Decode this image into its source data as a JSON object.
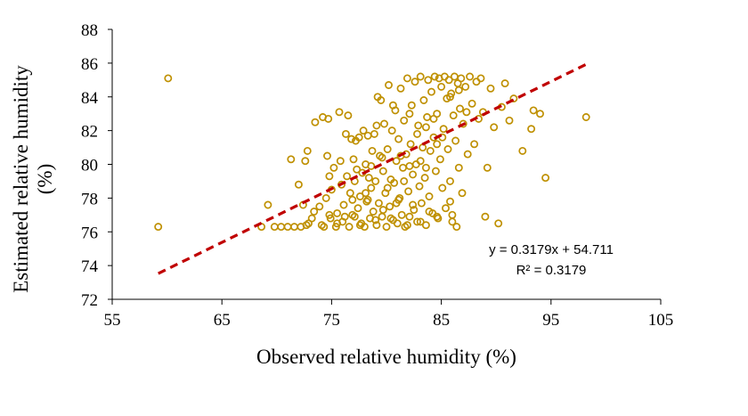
{
  "chart_data": {
    "type": "scatter",
    "xlabel": "Observed relative humidity (%)",
    "ylabel_lines": [
      "Estimated relative humidity",
      "(%)"
    ],
    "xlim": [
      55,
      105
    ],
    "ylim": [
      72,
      88
    ],
    "xticks": [
      "55",
      "65",
      "75",
      "85",
      "95",
      "105"
    ],
    "yticks": [
      "72",
      "74",
      "76",
      "78",
      "80",
      "82",
      "84",
      "86",
      "88"
    ],
    "grid": false,
    "legend": "none",
    "marker_color": "#BF9000",
    "trendline": {
      "equation": "y = 0.3179x + 54.711",
      "r_squared": "R² = 0.3179",
      "slope": 0.3179,
      "intercept": 54.711,
      "x_range": [
        59.2,
        98.2
      ],
      "color": "#C00000",
      "style": "dashed"
    },
    "series": [
      {
        "points": [
          [
            59.2,
            76.3
          ],
          [
            60.1,
            85.1
          ],
          [
            68.6,
            76.3
          ],
          [
            69.2,
            77.6
          ],
          [
            69.8,
            76.3
          ],
          [
            70.4,
            76.3
          ],
          [
            71.0,
            76.3
          ],
          [
            71.6,
            76.3
          ],
          [
            71.3,
            80.3
          ],
          [
            72.0,
            78.8
          ],
          [
            72.4,
            77.6
          ],
          [
            72.6,
            80.2
          ],
          [
            72.8,
            80.8
          ],
          [
            72.2,
            76.3
          ],
          [
            72.9,
            76.5
          ],
          [
            73.2,
            76.8
          ],
          [
            73.5,
            82.5
          ],
          [
            73.9,
            77.5
          ],
          [
            74.2,
            82.8
          ],
          [
            74.3,
            76.3
          ],
          [
            74.5,
            78.0
          ],
          [
            74.6,
            80.5
          ],
          [
            74.7,
            82.7
          ],
          [
            74.8,
            79.3
          ],
          [
            74.9,
            76.8
          ],
          [
            75.0,
            78.5
          ],
          [
            75.2,
            79.8
          ],
          [
            75.4,
            76.3
          ],
          [
            75.5,
            77.1
          ],
          [
            75.7,
            83.1
          ],
          [
            75.8,
            80.2
          ],
          [
            75.9,
            78.8
          ],
          [
            76.0,
            76.6
          ],
          [
            76.1,
            77.6
          ],
          [
            76.3,
            81.8
          ],
          [
            76.4,
            79.3
          ],
          [
            76.5,
            82.9
          ],
          [
            76.6,
            76.3
          ],
          [
            76.7,
            78.3
          ],
          [
            76.8,
            81.5
          ],
          [
            76.9,
            77.0
          ],
          [
            77.0,
            80.3
          ],
          [
            77.1,
            76.9
          ],
          [
            77.2,
            81.4
          ],
          [
            77.3,
            79.7
          ],
          [
            77.4,
            77.4
          ],
          [
            77.5,
            81.6
          ],
          [
            77.6,
            78.1
          ],
          [
            77.7,
            76.5
          ],
          [
            77.8,
            79.5
          ],
          [
            77.9,
            82.0
          ],
          [
            78.0,
            76.3
          ],
          [
            78.1,
            80.0
          ],
          [
            78.2,
            77.8
          ],
          [
            78.3,
            81.7
          ],
          [
            78.4,
            79.2
          ],
          [
            78.5,
            76.8
          ],
          [
            78.6,
            78.6
          ],
          [
            78.7,
            80.8
          ],
          [
            78.8,
            77.2
          ],
          [
            78.9,
            81.8
          ],
          [
            79.0,
            79.0
          ],
          [
            79.1,
            76.4
          ],
          [
            79.2,
            84.0
          ],
          [
            79.3,
            77.7
          ],
          [
            79.4,
            80.5
          ],
          [
            79.5,
            83.8
          ],
          [
            79.6,
            76.9
          ],
          [
            79.7,
            79.6
          ],
          [
            79.8,
            82.4
          ],
          [
            79.9,
            78.3
          ],
          [
            80.0,
            76.3
          ],
          [
            80.1,
            80.9
          ],
          [
            80.2,
            84.7
          ],
          [
            80.3,
            77.5
          ],
          [
            80.4,
            79.1
          ],
          [
            80.5,
            82.0
          ],
          [
            80.6,
            76.7
          ],
          [
            80.7,
            78.9
          ],
          [
            80.8,
            83.2
          ],
          [
            80.9,
            80.2
          ],
          [
            81.0,
            76.5
          ],
          [
            81.1,
            81.5
          ],
          [
            81.2,
            78.0
          ],
          [
            81.3,
            84.5
          ],
          [
            81.4,
            77.0
          ],
          [
            81.5,
            79.8
          ],
          [
            81.6,
            82.6
          ],
          [
            81.7,
            76.3
          ],
          [
            81.8,
            80.6
          ],
          [
            81.9,
            85.1
          ],
          [
            82.0,
            78.4
          ],
          [
            82.1,
            76.9
          ],
          [
            82.2,
            81.2
          ],
          [
            82.3,
            83.5
          ],
          [
            82.4,
            79.4
          ],
          [
            82.5,
            77.3
          ],
          [
            82.6,
            84.9
          ],
          [
            82.7,
            80.0
          ],
          [
            82.8,
            76.6
          ],
          [
            82.9,
            82.3
          ],
          [
            83.0,
            78.7
          ],
          [
            83.1,
            85.2
          ],
          [
            83.2,
            77.7
          ],
          [
            83.3,
            81.0
          ],
          [
            83.4,
            83.8
          ],
          [
            83.5,
            79.2
          ],
          [
            83.6,
            76.4
          ],
          [
            83.7,
            82.8
          ],
          [
            83.8,
            85.0
          ],
          [
            83.9,
            78.1
          ],
          [
            84.0,
            80.8
          ],
          [
            84.1,
            84.3
          ],
          [
            84.2,
            77.1
          ],
          [
            84.3,
            81.6
          ],
          [
            84.4,
            85.2
          ],
          [
            84.5,
            79.6
          ],
          [
            84.6,
            83.0
          ],
          [
            84.7,
            76.8
          ],
          [
            84.8,
            85.1
          ],
          [
            84.9,
            80.3
          ],
          [
            85.0,
            84.6
          ],
          [
            85.1,
            78.6
          ],
          [
            85.2,
            82.1
          ],
          [
            85.3,
            85.2
          ],
          [
            85.4,
            77.4
          ],
          [
            85.5,
            83.9
          ],
          [
            85.6,
            80.9
          ],
          [
            85.7,
            85.0
          ],
          [
            85.8,
            79.0
          ],
          [
            85.9,
            84.2
          ],
          [
            86.0,
            77.0
          ],
          [
            86.1,
            82.9
          ],
          [
            86.2,
            85.2
          ],
          [
            86.3,
            81.4
          ],
          [
            86.4,
            76.3
          ],
          [
            86.5,
            84.8
          ],
          [
            86.6,
            79.8
          ],
          [
            86.7,
            83.3
          ],
          [
            86.8,
            85.1
          ],
          [
            86.9,
            78.3
          ],
          [
            87.0,
            82.4
          ],
          [
            87.2,
            84.6
          ],
          [
            87.4,
            80.6
          ],
          [
            87.6,
            85.2
          ],
          [
            87.8,
            83.6
          ],
          [
            88.0,
            81.2
          ],
          [
            88.2,
            84.9
          ],
          [
            88.4,
            82.7
          ],
          [
            88.6,
            85.1
          ],
          [
            88.8,
            83.1
          ],
          [
            89.0,
            76.9
          ],
          [
            89.2,
            79.8
          ],
          [
            89.5,
            84.5
          ],
          [
            89.8,
            82.2
          ],
          [
            90.2,
            76.5
          ],
          [
            90.5,
            83.4
          ],
          [
            90.8,
            84.8
          ],
          [
            91.2,
            82.6
          ],
          [
            91.6,
            83.9
          ],
          [
            92.4,
            80.8
          ],
          [
            93.2,
            82.1
          ],
          [
            93.4,
            83.2
          ],
          [
            94.0,
            83.0
          ],
          [
            94.5,
            79.2
          ],
          [
            98.2,
            82.8
          ],
          [
            85.8,
            77.8
          ],
          [
            86.0,
            76.6
          ],
          [
            84.6,
            76.9
          ],
          [
            83.9,
            77.2
          ],
          [
            83.1,
            76.6
          ],
          [
            82.4,
            77.6
          ],
          [
            81.9,
            76.4
          ],
          [
            81.1,
            77.9
          ],
          [
            80.4,
            76.8
          ],
          [
            79.7,
            77.3
          ],
          [
            79.0,
            76.7
          ],
          [
            78.3,
            77.9
          ],
          [
            77.6,
            76.4
          ],
          [
            76.9,
            77.9
          ],
          [
            76.2,
            76.9
          ],
          [
            75.5,
            76.5
          ],
          [
            74.8,
            77.0
          ],
          [
            74.1,
            76.4
          ],
          [
            73.4,
            77.2
          ],
          [
            72.7,
            76.4
          ],
          [
            77.1,
            79.0
          ],
          [
            78.6,
            79.9
          ],
          [
            80.1,
            78.6
          ],
          [
            81.6,
            79.0
          ],
          [
            83.1,
            80.2
          ],
          [
            84.6,
            81.2
          ],
          [
            83.6,
            82.2
          ],
          [
            82.1,
            83.0
          ],
          [
            80.6,
            83.5
          ],
          [
            79.1,
            82.3
          ],
          [
            78.1,
            78.3
          ],
          [
            79.6,
            80.4
          ],
          [
            81.3,
            80.5
          ],
          [
            82.8,
            81.8
          ],
          [
            84.3,
            82.7
          ],
          [
            85.8,
            84.0
          ],
          [
            86.6,
            84.4
          ],
          [
            87.3,
            83.1
          ],
          [
            85.1,
            81.6
          ],
          [
            83.6,
            79.8
          ],
          [
            82.1,
            79.9
          ],
          [
            80.9,
            77.7
          ]
        ]
      }
    ]
  }
}
